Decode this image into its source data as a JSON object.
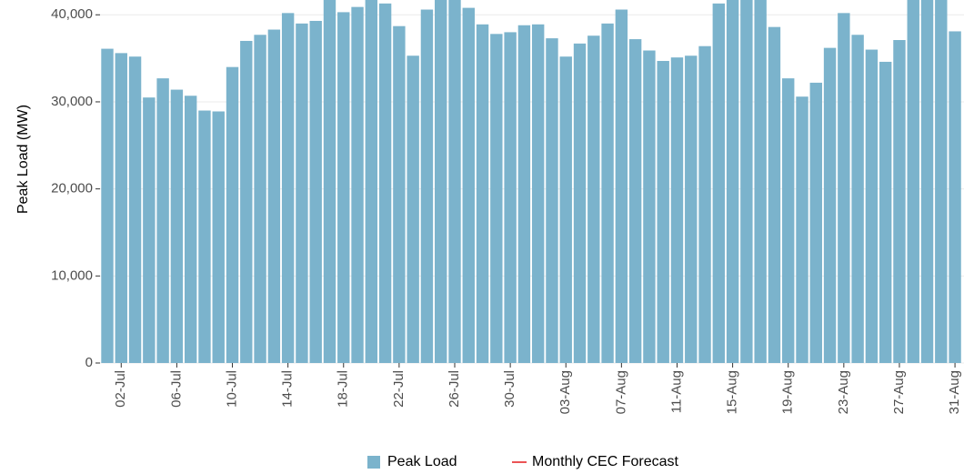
{
  "chart_data": {
    "type": "bar",
    "y_label": "Peak Load (MW)",
    "categories": [
      null,
      "02-Jul",
      null,
      null,
      null,
      "06-Jul",
      null,
      null,
      null,
      "10-Jul",
      null,
      null,
      null,
      "14-Jul",
      null,
      null,
      null,
      "18-Jul",
      null,
      null,
      null,
      "22-Jul",
      null,
      null,
      null,
      "26-Jul",
      null,
      null,
      null,
      "30-Jul",
      null,
      null,
      null,
      "03-Aug",
      null,
      null,
      null,
      "07-Aug",
      null,
      null,
      null,
      "11-Aug",
      null,
      null,
      null,
      "15-Aug",
      null,
      null,
      null,
      "19-Aug",
      null,
      null,
      null,
      "23-Aug",
      null,
      null,
      null,
      "27-Aug",
      null,
      null,
      null,
      "31-Aug"
    ],
    "series": [
      {
        "name": "Peak Load",
        "color": "#7bb3cc",
        "values": [
          36100,
          35600,
          35200,
          30500,
          32700,
          31400,
          30700,
          29000,
          28900,
          34000,
          37000,
          37700,
          38300,
          40200,
          39000,
          39300,
          42000,
          40300,
          40900,
          42000,
          41300,
          38700,
          35300,
          40600,
          42000,
          42000,
          40800,
          38900,
          37800,
          38000,
          38800,
          38900,
          37300,
          35200,
          36700,
          37600,
          39000,
          40600,
          37200,
          35900,
          34700,
          35100,
          35300,
          36400,
          41300,
          42000,
          42000,
          42000,
          38600,
          32700,
          30600,
          32200,
          36200,
          40200,
          37700,
          36000,
          34600,
          37100,
          42000,
          42000,
          42000,
          38100
        ]
      },
      {
        "name": "Monthly CEC Forecast",
        "color": "#e41a1c"
      }
    ],
    "ylim": [
      0,
      41700
    ],
    "yticks": [
      0,
      {
        "value": 10000,
        "label": "10,000"
      },
      {
        "value": 20000,
        "label": "20,000"
      },
      {
        "value": 30000,
        "label": "30,000"
      },
      {
        "value": 40000,
        "label": "40,000"
      }
    ],
    "grid": true
  }
}
